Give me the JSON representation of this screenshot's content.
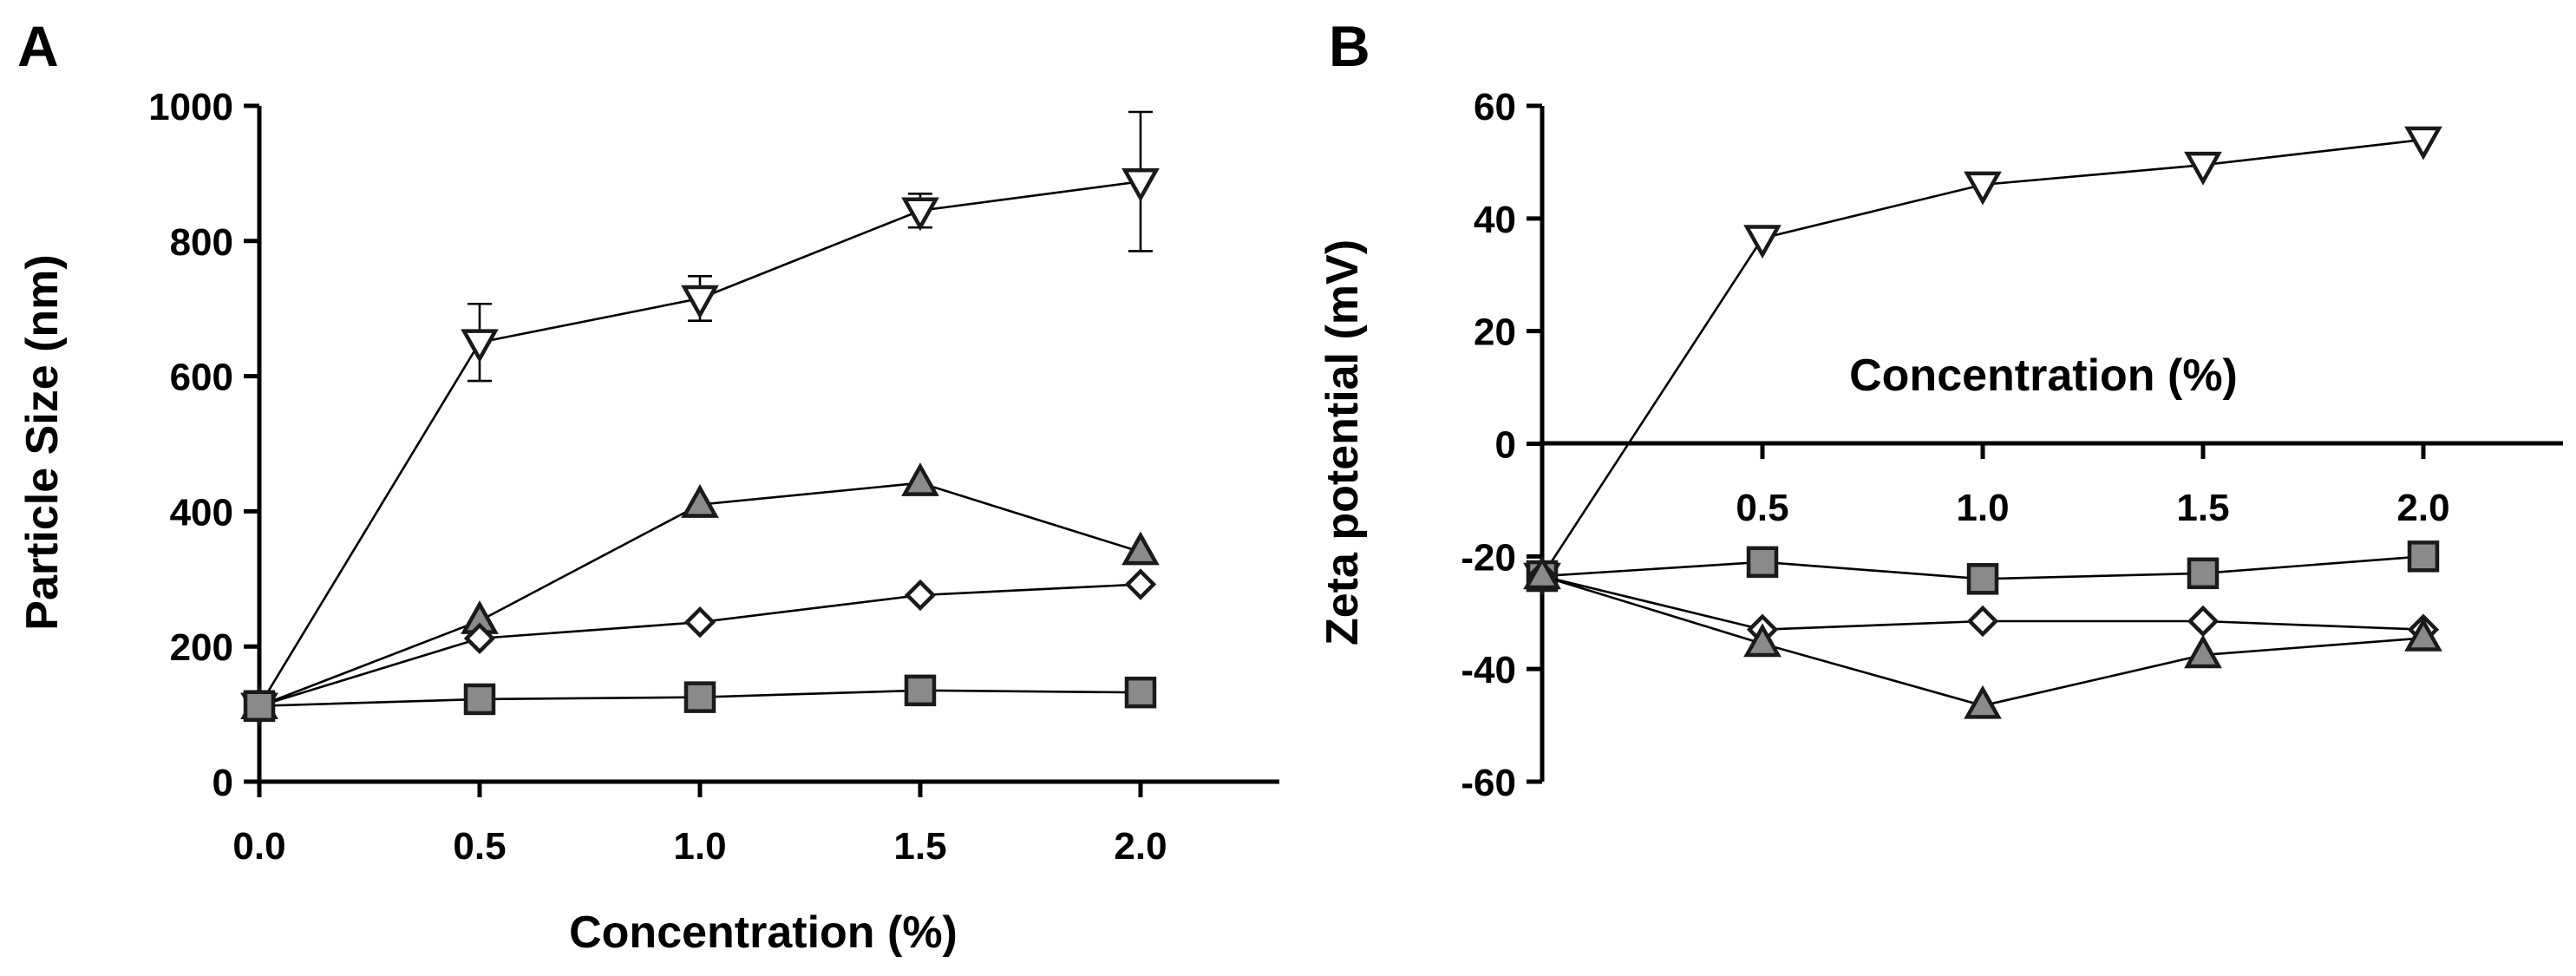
{
  "chart_data": [
    {
      "panel": "A",
      "type": "line",
      "xlabel": "Concentration (%)",
      "ylabel": "Particle Size (nm)",
      "xlim": [
        0,
        2.3
      ],
      "ylim": [
        0,
        1000
      ],
      "x_ticks": [
        "0.0",
        "0.5",
        "1.0",
        "1.5",
        "2.0"
      ],
      "y_ticks": [
        "0",
        "200",
        "400",
        "600",
        "800",
        "1000"
      ],
      "x": [
        0,
        0.5,
        1.0,
        1.5,
        2.0
      ],
      "series": [
        {
          "name": "open inverted triangle",
          "marker": "triangle-down",
          "fill": "#ffffff",
          "values": [
            112,
            650,
            715,
            845,
            888
          ],
          "errors": [
            0,
            57,
            33,
            25,
            103
          ]
        },
        {
          "name": "grey triangle",
          "marker": "triangle-up",
          "fill": "#8a8a8a",
          "values": [
            112,
            238,
            410,
            442,
            340
          ],
          "errors": [
            0,
            0,
            0,
            0,
            0
          ]
        },
        {
          "name": "open diamond",
          "marker": "diamond",
          "fill": "#ffffff",
          "values": [
            112,
            212,
            236,
            276,
            292
          ],
          "errors": [
            0,
            0,
            0,
            0,
            0
          ]
        },
        {
          "name": "grey square",
          "marker": "square",
          "fill": "#8a8a8a",
          "values": [
            112,
            122,
            125,
            135,
            132
          ],
          "errors": [
            0,
            0,
            0,
            0,
            0
          ]
        }
      ]
    },
    {
      "panel": "B",
      "type": "line",
      "xlabel": "Concentration (%)",
      "ylabel": "Zeta potential (mV)",
      "xlim": [
        0,
        2.3
      ],
      "ylim": [
        -60,
        60
      ],
      "x_ticks": [
        "0.5",
        "1.0",
        "1.5",
        "2.0"
      ],
      "y_ticks": [
        "-60",
        "-40",
        "-20",
        "0",
        "20",
        "40",
        "60"
      ],
      "x": [
        0,
        0.5,
        1.0,
        1.5,
        2.0
      ],
      "series": [
        {
          "name": "open inverted triangle",
          "marker": "triangle-down",
          "fill": "#ffffff",
          "values": [
            -23.5,
            36.5,
            46,
            49.5,
            54
          ]
        },
        {
          "name": "grey square",
          "marker": "square",
          "fill": "#8a8a8a",
          "values": [
            -23.5,
            -21,
            -24,
            -23,
            -20
          ]
        },
        {
          "name": "open diamond",
          "marker": "diamond",
          "fill": "#ffffff",
          "values": [
            -23.5,
            -33,
            -31.5,
            -31.5,
            -33
          ]
        },
        {
          "name": "grey triangle",
          "marker": "triangle-up",
          "fill": "#8a8a8a",
          "values": [
            -23.5,
            -35.5,
            -46.5,
            -37.5,
            -34.5
          ]
        }
      ]
    }
  ]
}
